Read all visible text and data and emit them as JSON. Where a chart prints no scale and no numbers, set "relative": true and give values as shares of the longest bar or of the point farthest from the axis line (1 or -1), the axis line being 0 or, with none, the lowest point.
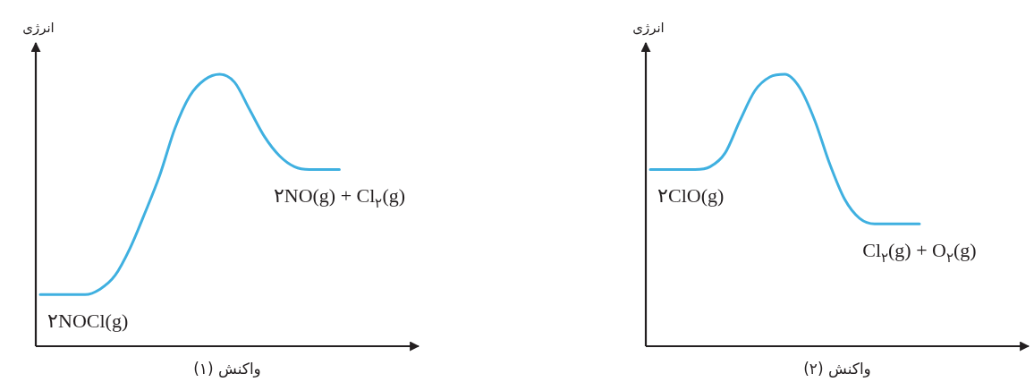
{
  "chart_data": [
    {
      "type": "line",
      "relative": true,
      "ylabel": "انرژی",
      "xlabel": "واکنش (۱)",
      "categories": [
        null,
        null,
        null,
        null,
        null,
        null,
        null,
        null,
        null,
        null,
        null,
        null,
        null,
        null,
        null,
        null,
        null,
        null,
        null,
        null,
        null,
        null,
        null,
        null,
        null,
        null
      ],
      "series": [
        {
          "color": "#3fb0e0",
          "values": [
            0.19,
            0.19,
            0.19,
            0.19,
            0.21,
            0.26,
            0.36,
            0.49,
            0.63,
            0.8,
            0.92,
            0.98,
            1,
            0.97,
            0.87,
            0.77,
            0.7,
            0.66,
            0.65,
            0.65,
            0.65,
            null,
            null,
            null,
            null,
            null
          ]
        }
      ],
      "annotations": [
        {
          "text": "۲NOCl(g)",
          "y": 0.19
        },
        {
          "text": "۲NO(g) + Cl$_{۲}$(g)",
          "y": 0.65
        }
      ]
    },
    {
      "type": "line",
      "relative": true,
      "ylabel": "انرژی",
      "xlabel": "واکنش (۲)",
      "categories": [
        null,
        null,
        null,
        null,
        null,
        null,
        null,
        null,
        null,
        null,
        null,
        null,
        null,
        null,
        null,
        null,
        null,
        null,
        null,
        null,
        null,
        null,
        null,
        null,
        null,
        null
      ],
      "series": [
        {
          "color": "#3fb0e0",
          "values": [
            0.65,
            0.65,
            0.65,
            0.65,
            0.66,
            0.71,
            0.83,
            0.94,
            0.99,
            1,
            0.95,
            0.83,
            0.67,
            0.54,
            0.47,
            0.45,
            0.45,
            0.45,
            0.45,
            null,
            null,
            null,
            null,
            null,
            null,
            null
          ]
        }
      ],
      "annotations": [
        {
          "text": "۲ClO(g)",
          "y": 0.65
        },
        {
          "text": "Cl$_{۲}$(g) + O$_{۲}$(g)",
          "y": 0.45
        }
      ]
    }
  ]
}
